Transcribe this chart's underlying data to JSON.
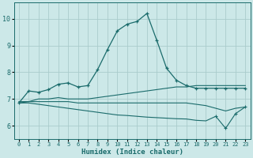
{
  "xlabel": "Humidex (Indice chaleur)",
  "bg_color": "#cce8e8",
  "grid_color": "#aacccc",
  "line_color": "#1a6b6b",
  "xlim": [
    -0.5,
    23.5
  ],
  "ylim": [
    5.5,
    10.6
  ],
  "yticks": [
    6,
    7,
    8,
    9,
    10
  ],
  "xticks": [
    0,
    1,
    2,
    3,
    4,
    5,
    6,
    7,
    8,
    9,
    10,
    11,
    12,
    13,
    14,
    15,
    16,
    17,
    18,
    19,
    20,
    21,
    22,
    23
  ],
  "line1_x": [
    0,
    1,
    2,
    3,
    4,
    5,
    6,
    7,
    8,
    9,
    10,
    11,
    12,
    13,
    14,
    15,
    16,
    17,
    18,
    19,
    20,
    21,
    22,
    23
  ],
  "line1_y": [
    6.85,
    7.3,
    7.25,
    7.35,
    7.55,
    7.6,
    7.45,
    7.5,
    8.1,
    8.85,
    9.55,
    9.8,
    9.9,
    10.2,
    9.2,
    8.15,
    7.7,
    7.5,
    7.4,
    7.4,
    7.4,
    7.4,
    7.4,
    7.4
  ],
  "line2_x": [
    0,
    1,
    2,
    3,
    4,
    5,
    6,
    7,
    8,
    9,
    10,
    11,
    12,
    13,
    14,
    15,
    16,
    17,
    18,
    19,
    20,
    21,
    22,
    23
  ],
  "line2_y": [
    6.9,
    6.9,
    7.0,
    7.0,
    7.05,
    7.0,
    7.0,
    7.0,
    7.05,
    7.1,
    7.15,
    7.2,
    7.25,
    7.3,
    7.35,
    7.4,
    7.45,
    7.45,
    7.5,
    7.5,
    7.5,
    7.5,
    7.5,
    7.5
  ],
  "line3_x": [
    0,
    1,
    2,
    3,
    4,
    5,
    6,
    7,
    8,
    9,
    10,
    11,
    12,
    13,
    14,
    15,
    16,
    17,
    18,
    19,
    20,
    21,
    22,
    23
  ],
  "line3_y": [
    6.85,
    6.9,
    6.9,
    6.9,
    6.9,
    6.9,
    6.85,
    6.85,
    6.85,
    6.85,
    6.85,
    6.85,
    6.85,
    6.85,
    6.85,
    6.85,
    6.85,
    6.85,
    6.8,
    6.75,
    6.65,
    6.55,
    6.65,
    6.7
  ],
  "line4_x": [
    0,
    1,
    2,
    3,
    4,
    5,
    6,
    7,
    8,
    9,
    10,
    11,
    12,
    13,
    14,
    15,
    16,
    17,
    18,
    19,
    20,
    21,
    22,
    23
  ],
  "line4_y": [
    6.85,
    6.85,
    6.8,
    6.75,
    6.7,
    6.65,
    6.6,
    6.55,
    6.5,
    6.45,
    6.4,
    6.38,
    6.35,
    6.32,
    6.3,
    6.28,
    6.26,
    6.25,
    6.2,
    6.18,
    6.35,
    5.9,
    6.45,
    6.7
  ]
}
